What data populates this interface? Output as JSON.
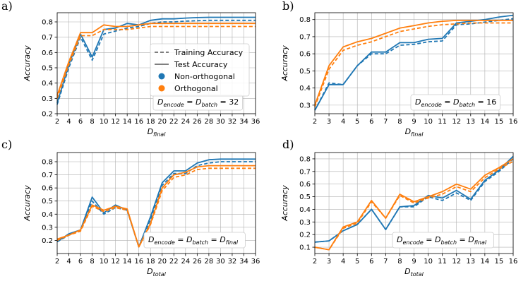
{
  "colors": {
    "non_orthogonal": "#1f77b4",
    "orthogonal": "#ff7f0e",
    "grid": "#b0b0b0"
  },
  "legend": {
    "training": "Training Accuracy",
    "test": "Test Accuracy",
    "non_orthogonal": "Non-orthogonal",
    "orthogonal": "Orthogonal"
  },
  "chart_data": [
    {
      "panel": "a)",
      "type": "line",
      "xlabel": "D_final",
      "xlabel_main": "D",
      "xlabel_sub": "final",
      "ylabel": "Accuracy",
      "annotation": "D_encode = D_batch = 32",
      "annotation_parts": [
        "D",
        "encode",
        " = D",
        "batch",
        " = 32"
      ],
      "xlim": [
        2,
        36
      ],
      "ylim": [
        0.2,
        0.86
      ],
      "xticks": [
        2,
        4,
        6,
        8,
        10,
        12,
        14,
        16,
        18,
        20,
        22,
        24,
        26,
        28,
        30,
        32,
        34,
        36
      ],
      "yticks": [
        0.2,
        0.3,
        0.4,
        0.5,
        0.6,
        0.7,
        0.8
      ],
      "x": [
        2,
        4,
        6,
        8,
        10,
        12,
        14,
        16,
        18,
        20,
        22,
        24,
        26,
        28,
        30,
        32,
        34,
        36
      ],
      "series": [
        {
          "name": "Non-orthogonal Test Accuracy",
          "group": "non_orthogonal",
          "style": "solid",
          "values": [
            0.27,
            0.52,
            0.72,
            0.57,
            0.75,
            0.76,
            0.79,
            0.78,
            0.81,
            0.82,
            0.82,
            0.825,
            0.828,
            0.83,
            0.83,
            0.83,
            0.83,
            0.83
          ]
        },
        {
          "name": "Non-orthogonal Training Accuracy",
          "group": "non_orthogonal",
          "style": "dashed",
          "values": [
            0.26,
            0.5,
            0.7,
            0.55,
            0.72,
            0.74,
            0.76,
            0.77,
            0.79,
            0.8,
            0.8,
            0.805,
            0.808,
            0.81,
            0.81,
            0.81,
            0.81,
            0.81
          ]
        },
        {
          "name": "Orthogonal Test Accuracy",
          "group": "orthogonal",
          "style": "solid",
          "values": [
            0.32,
            0.54,
            0.73,
            0.73,
            0.78,
            0.77,
            0.77,
            0.78,
            0.79,
            0.79,
            0.79,
            0.79,
            0.79,
            0.79,
            0.79,
            0.79,
            0.79,
            0.79
          ]
        },
        {
          "name": "Orthogonal Training Accuracy",
          "group": "orthogonal",
          "style": "dashed",
          "values": [
            0.3,
            0.52,
            0.71,
            0.71,
            0.75,
            0.75,
            0.75,
            0.76,
            0.77,
            0.77,
            0.77,
            0.77,
            0.77,
            0.77,
            0.77,
            0.77,
            0.77,
            0.77
          ]
        }
      ]
    },
    {
      "panel": "b)",
      "type": "line",
      "xlabel": "D_final",
      "xlabel_main": "D",
      "xlabel_sub": "final",
      "ylabel": "Accuracy",
      "annotation": "D_encode = D_batch = 16",
      "annotation_parts": [
        "D",
        "encode",
        " = D",
        "batch",
        " = 16"
      ],
      "xlim": [
        2,
        16
      ],
      "ylim": [
        0.25,
        0.84
      ],
      "xticks": [
        2,
        3,
        4,
        5,
        6,
        7,
        8,
        9,
        10,
        11,
        12,
        13,
        14,
        15,
        16
      ],
      "yticks": [
        0.3,
        0.4,
        0.5,
        0.6,
        0.7,
        0.8
      ],
      "x": [
        2,
        3,
        4,
        5,
        6,
        7,
        8,
        9,
        10,
        11,
        12,
        13,
        14,
        15,
        16
      ],
      "series": [
        {
          "name": "Non-orthogonal Test Accuracy",
          "group": "non_orthogonal",
          "style": "solid",
          "values": [
            0.27,
            0.42,
            0.42,
            0.53,
            0.61,
            0.61,
            0.665,
            0.665,
            0.685,
            0.69,
            0.78,
            0.79,
            0.8,
            0.815,
            0.825
          ]
        },
        {
          "name": "Non-orthogonal Training Accuracy",
          "group": "non_orthogonal",
          "style": "dashed",
          "values": [
            0.27,
            0.43,
            0.42,
            0.53,
            0.6,
            0.6,
            0.65,
            0.655,
            0.67,
            0.675,
            0.77,
            0.775,
            0.785,
            0.795,
            0.805
          ]
        },
        {
          "name": "Orthogonal Test Accuracy",
          "group": "orthogonal",
          "style": "solid",
          "values": [
            0.3,
            0.53,
            0.64,
            0.67,
            0.69,
            0.72,
            0.75,
            0.765,
            0.78,
            0.79,
            0.795,
            0.795,
            0.795,
            0.795,
            0.795
          ]
        },
        {
          "name": "Orthogonal Training Accuracy",
          "group": "orthogonal",
          "style": "dashed",
          "values": [
            0.29,
            0.51,
            0.62,
            0.65,
            0.67,
            0.7,
            0.73,
            0.745,
            0.76,
            0.77,
            0.775,
            0.78,
            0.78,
            0.78,
            0.78
          ]
        }
      ]
    },
    {
      "panel": "c)",
      "type": "line",
      "xlabel": "D_total",
      "xlabel_main": "D",
      "xlabel_sub": "total",
      "ylabel": "Accuracy",
      "annotation": "D_encode = D_batch = D_final",
      "annotation_parts": [
        "D",
        "encode",
        " = D",
        "batch",
        " = D",
        "final"
      ],
      "xlim": [
        2,
        36
      ],
      "ylim": [
        0.1,
        0.87
      ],
      "xticks": [
        2,
        4,
        6,
        8,
        10,
        12,
        14,
        16,
        18,
        20,
        22,
        24,
        26,
        28,
        30,
        32,
        34,
        36
      ],
      "yticks": [
        0.2,
        0.3,
        0.4,
        0.5,
        0.6,
        0.7,
        0.8
      ],
      "x": [
        2,
        4,
        6,
        8,
        10,
        12,
        14,
        16,
        18,
        20,
        22,
        24,
        26,
        28,
        30,
        32,
        34,
        36
      ],
      "series": [
        {
          "name": "Non-orthogonal Test Accuracy",
          "group": "non_orthogonal",
          "style": "solid",
          "values": [
            0.19,
            0.25,
            0.28,
            0.53,
            0.41,
            0.47,
            0.43,
            0.15,
            0.38,
            0.64,
            0.73,
            0.73,
            0.79,
            0.815,
            0.82,
            0.82,
            0.82,
            0.82
          ]
        },
        {
          "name": "Non-orthogonal Training Accuracy",
          "group": "non_orthogonal",
          "style": "dashed",
          "values": [
            0.19,
            0.24,
            0.28,
            0.5,
            0.4,
            0.45,
            0.43,
            0.15,
            0.36,
            0.62,
            0.71,
            0.71,
            0.77,
            0.79,
            0.8,
            0.8,
            0.8,
            0.8
          ]
        },
        {
          "name": "Orthogonal Test Accuracy",
          "group": "orthogonal",
          "style": "solid",
          "values": [
            0.21,
            0.24,
            0.28,
            0.47,
            0.43,
            0.46,
            0.44,
            0.15,
            0.33,
            0.6,
            0.7,
            0.72,
            0.76,
            0.77,
            0.77,
            0.77,
            0.77,
            0.77
          ]
        },
        {
          "name": "Orthogonal Training Accuracy",
          "group": "orthogonal",
          "style": "dashed",
          "values": [
            0.2,
            0.24,
            0.27,
            0.46,
            0.42,
            0.45,
            0.43,
            0.15,
            0.32,
            0.58,
            0.68,
            0.7,
            0.74,
            0.75,
            0.75,
            0.75,
            0.75,
            0.75
          ]
        }
      ]
    },
    {
      "panel": "d)",
      "type": "line",
      "xlabel": "D_total",
      "xlabel_main": "D",
      "xlabel_sub": "total",
      "ylabel": "Accuracy",
      "annotation": "D_encode = D_batch = D_final",
      "annotation_parts": [
        "D",
        "encode",
        " = D",
        "batch",
        " = D",
        "final"
      ],
      "xlim": [
        2,
        16
      ],
      "ylim": [
        0.05,
        0.85
      ],
      "xticks": [
        2,
        3,
        4,
        5,
        6,
        7,
        8,
        9,
        10,
        11,
        12,
        13,
        14,
        15,
        16
      ],
      "yticks": [
        0.1,
        0.2,
        0.3,
        0.4,
        0.5,
        0.6,
        0.7,
        0.8
      ],
      "x": [
        2,
        3,
        4,
        5,
        6,
        7,
        8,
        9,
        10,
        11,
        12,
        13,
        14,
        15,
        16
      ],
      "series": [
        {
          "name": "Non-orthogonal Test Accuracy",
          "group": "non_orthogonal",
          "style": "solid",
          "values": [
            0.14,
            0.15,
            0.23,
            0.28,
            0.4,
            0.24,
            0.42,
            0.43,
            0.51,
            0.49,
            0.55,
            0.48,
            0.63,
            0.71,
            0.82
          ]
        },
        {
          "name": "Non-orthogonal Training Accuracy",
          "group": "non_orthogonal",
          "style": "dashed",
          "values": [
            0.14,
            0.15,
            0.23,
            0.28,
            0.4,
            0.24,
            0.42,
            0.42,
            0.5,
            0.47,
            0.53,
            0.47,
            0.62,
            0.7,
            0.8
          ]
        },
        {
          "name": "Orthogonal Test Accuracy",
          "group": "orthogonal",
          "style": "solid",
          "values": [
            0.1,
            0.08,
            0.26,
            0.3,
            0.47,
            0.33,
            0.52,
            0.46,
            0.5,
            0.54,
            0.6,
            0.56,
            0.67,
            0.73,
            0.8
          ]
        },
        {
          "name": "Orthogonal Training Accuracy",
          "group": "orthogonal",
          "style": "dashed",
          "values": [
            0.1,
            0.08,
            0.25,
            0.29,
            0.46,
            0.33,
            0.51,
            0.45,
            0.49,
            0.52,
            0.58,
            0.54,
            0.65,
            0.72,
            0.78
          ]
        }
      ]
    }
  ]
}
